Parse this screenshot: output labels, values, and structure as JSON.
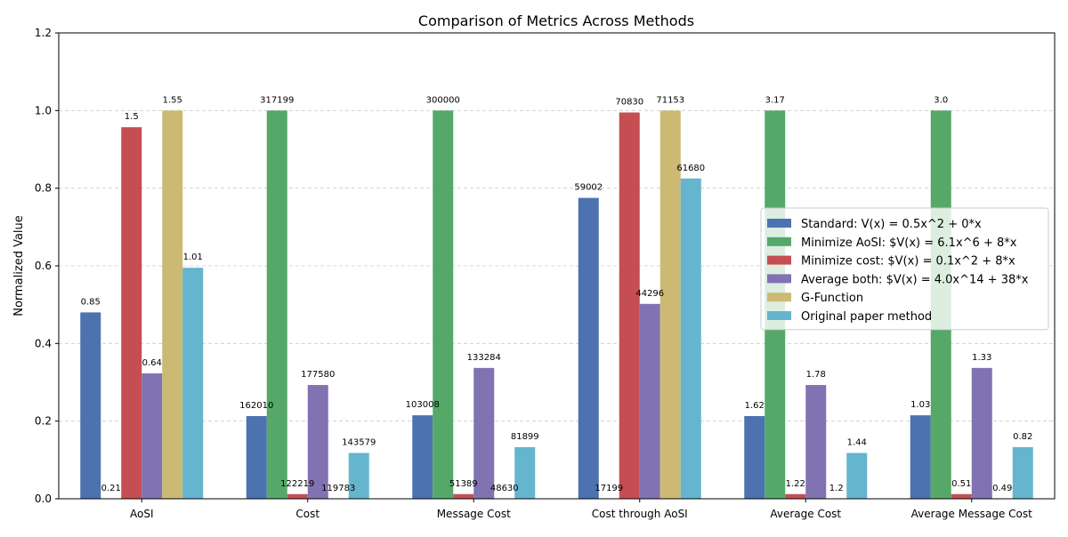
{
  "chart_data": {
    "type": "bar",
    "title": "Comparison of Metrics Across Methods",
    "xlabel": "",
    "ylabel": "Normalized Value",
    "ylim": [
      0,
      1.2
    ],
    "yticks": [
      "0.0",
      "0.2",
      "0.4",
      "0.6",
      "0.8",
      "1.0",
      "1.2"
    ],
    "grid": "y-dashed",
    "legend_position": "center-right",
    "categories": [
      "AoSI",
      "Cost",
      "Message Cost",
      "Cost through AoSI",
      "Average Cost",
      "Average Message Cost"
    ],
    "series": [
      {
        "name": "Standard: V(x) = 0.5x^2 + 0*x",
        "color": "#4c72b0",
        "values": [
          0.48,
          0.213,
          0.215,
          0.775,
          0.213,
          0.215
        ],
        "labels": [
          "0.85",
          "162010",
          "103008",
          "59002",
          "1.62",
          "1.03"
        ]
      },
      {
        "name": "Minimize AoSI: $V(x) = 6.1x^6 + 8*x",
        "color": "#55a868",
        "values": [
          0.0,
          1.0,
          1.0,
          0.0,
          1.0,
          1.0
        ],
        "labels": [
          "0.21",
          "317199",
          "300000",
          "17199",
          "3.17",
          "3.0"
        ]
      },
      {
        "name": "Minimize cost: $V(x) = 0.1x^2 + 8*x",
        "color": "#c44e52",
        "values": [
          0.957,
          0.012,
          0.012,
          0.995,
          0.012,
          0.012
        ],
        "labels": [
          "1.5",
          "122219",
          "51389",
          "70830",
          "1.22",
          "0.51"
        ]
      },
      {
        "name": "Average both: $V(x) = 4.0x^14 + 38*x",
        "color": "#8172b2",
        "values": [
          0.323,
          0.293,
          0.337,
          0.502,
          0.293,
          0.337
        ],
        "labels": [
          "0.64",
          "177580",
          "133284",
          "44296",
          "1.78",
          "1.33"
        ]
      },
      {
        "name": "G-Function",
        "color": "#ccb974",
        "values": [
          1.0,
          0.0,
          0.0,
          1.0,
          0.0,
          0.0
        ],
        "labels": [
          "1.55",
          "119783",
          "48630",
          "71153",
          "1.2",
          "0.49"
        ]
      },
      {
        "name": "Original paper method",
        "color": "#64b5cd",
        "values": [
          0.595,
          0.118,
          0.133,
          0.825,
          0.118,
          0.133
        ],
        "labels": [
          "1.01",
          "143579",
          "81899",
          "61680",
          "1.44",
          "0.82"
        ]
      }
    ]
  }
}
